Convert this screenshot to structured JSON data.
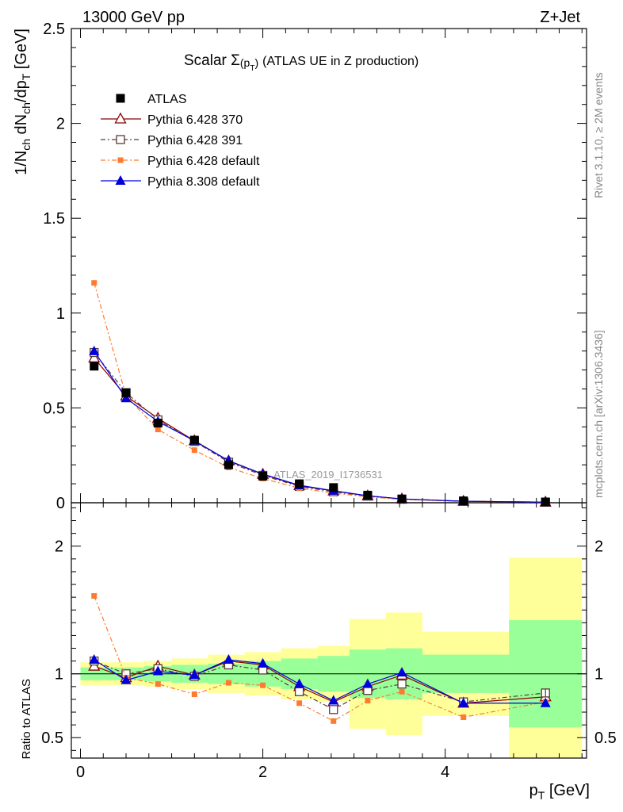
{
  "header": {
    "left": "13000 GeV pp",
    "right": "Z+Jet"
  },
  "title": {
    "main": "Scalar Σ",
    "arg": "(p",
    "arg_sub": "T",
    "arg_close": ")",
    "rest": "(ATLAS UE in Z production)"
  },
  "side_labels": {
    "rivet": "Rivet 3.1.10, ≥ 2M events",
    "mcplots": "mcplots.cern.ch [arXiv:1306.3436]"
  },
  "watermark": "ATLAS_2019_I1736531",
  "axes": {
    "ylabel_top": "1/N_ch dN_ch/dp_T [GeV]",
    "ylabel_ratio": "Ratio to ATLAS",
    "xlabel": "p_T [GeV]",
    "top_ylim": [
      0,
      2.5
    ],
    "ratio_ylim": [
      0.34,
      2.34
    ],
    "xlim": [
      -0.1,
      5.55
    ],
    "top_yticks": [
      "0",
      "0.5",
      "1",
      "1.5",
      "2",
      "2.5"
    ],
    "ratio_yticks": [
      "0.5",
      "1",
      "2"
    ],
    "xticks": [
      "0",
      "2",
      "4"
    ]
  },
  "colors": {
    "atlas": "#000000",
    "py370": "#8b0000",
    "py391": "#5a3a3a",
    "py6def": "#ff7a2e",
    "py8def": "#0000dd",
    "band_green": "#99ff99",
    "band_yellow": "#ffff99"
  },
  "chart_data": {
    "type": "line",
    "x": [
      0.15,
      0.5,
      0.85,
      1.25,
      1.625,
      2.0,
      2.4,
      2.775,
      3.15,
      3.525,
      4.2,
      5.1
    ],
    "bin_edges": [
      0,
      0.3,
      0.7,
      1.0,
      1.4,
      1.8,
      2.2,
      2.6,
      2.95,
      3.35,
      3.75,
      4.7,
      5.5
    ],
    "series": [
      {
        "name": "ATLAS",
        "key": "atlas",
        "marker": "square-filled",
        "values": [
          0.72,
          0.58,
          0.42,
          0.33,
          0.2,
          0.14,
          0.1,
          0.08,
          0.04,
          0.02,
          0.01,
          0.004
        ]
      },
      {
        "name": "Pythia 6.428 370",
        "key": "py370",
        "marker": "triangle-open",
        "dash": "",
        "ratio": [
          1.06,
          0.97,
          1.06,
          0.99,
          1.1,
          1.07,
          0.9,
          0.78,
          0.9,
          0.99,
          0.77,
          0.82
        ]
      },
      {
        "name": "Pythia 6.428 391",
        "key": "py391",
        "marker": "square-open",
        "dash": "6 3 2 3",
        "ratio": [
          1.1,
          1.0,
          1.04,
          0.98,
          1.07,
          1.03,
          0.86,
          0.72,
          0.87,
          0.92,
          0.78,
          0.85
        ]
      },
      {
        "name": "Pythia 6.428 default",
        "key": "py6def",
        "marker": "square-small-filled",
        "dash": "6 3 2 3",
        "ratio": [
          1.61,
          0.97,
          0.92,
          0.84,
          0.93,
          0.91,
          0.77,
          0.63,
          0.79,
          0.86,
          0.66,
          0.78
        ]
      },
      {
        "name": "Pythia 8.308 default",
        "key": "py8def",
        "marker": "triangle-filled",
        "dash": "",
        "ratio": [
          1.11,
          0.95,
          1.02,
          0.99,
          1.11,
          1.08,
          0.92,
          0.79,
          0.92,
          1.01,
          0.77,
          0.77
        ]
      }
    ],
    "band_green": [
      [
        0.95,
        1.05
      ],
      [
        0.95,
        1.05
      ],
      [
        0.94,
        1.06
      ],
      [
        0.93,
        1.07
      ],
      [
        0.92,
        1.08
      ],
      [
        0.9,
        1.1
      ],
      [
        0.88,
        1.12
      ],
      [
        0.86,
        1.14
      ],
      [
        0.81,
        1.19
      ],
      [
        0.8,
        1.2
      ],
      [
        0.85,
        1.15
      ],
      [
        0.58,
        1.42
      ]
    ],
    "band_yellow": [
      [
        0.91,
        1.09
      ],
      [
        0.91,
        1.09
      ],
      [
        0.9,
        1.1
      ],
      [
        0.88,
        1.12
      ],
      [
        0.85,
        1.15
      ],
      [
        0.83,
        1.17
      ],
      [
        0.8,
        1.2
      ],
      [
        0.78,
        1.22
      ],
      [
        0.57,
        1.43
      ],
      [
        0.52,
        1.48
      ],
      [
        0.67,
        1.33
      ],
      [
        0.34,
        1.91
      ]
    ]
  }
}
